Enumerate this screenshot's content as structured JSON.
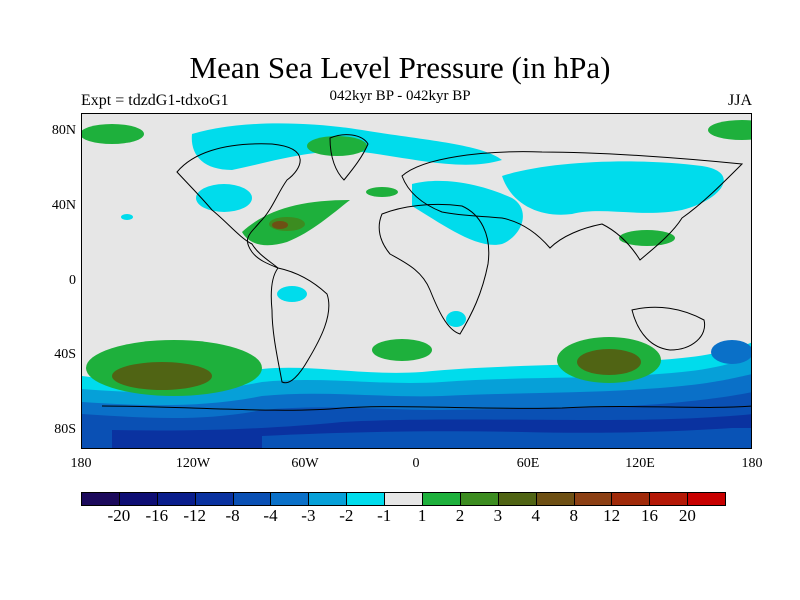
{
  "title": "Mean Sea Level Pressure (in hPa)",
  "subtitle_left": "Expt = tdzdG1-tdxoG1",
  "subtitle_center": "042kyr BP - 042kyr BP",
  "subtitle_right": "JJA",
  "lat_labels": [
    "80N",
    "40N",
    "0",
    "40S",
    "80S"
  ],
  "lon_labels": [
    "180",
    "120W",
    "60W",
    "0",
    "60E",
    "120E",
    "180"
  ],
  "colorbar": {
    "colors": [
      "#1c0a5c",
      "#0e0e74",
      "#0a1e8c",
      "#0a32a0",
      "#0a50b4",
      "#0a70c8",
      "#06a0d8",
      "#00dcec",
      "#e6e6e6",
      "#1eb03c",
      "#3c8c20",
      "#506414",
      "#6e5014",
      "#8c4014",
      "#a02a0a",
      "#b41806",
      "#c80000"
    ],
    "labels": [
      "-20",
      "-16",
      "-12",
      "-8",
      "-4",
      "-3",
      "-2",
      "-1",
      "1",
      "2",
      "3",
      "4",
      "8",
      "12",
      "16",
      "20"
    ]
  }
}
